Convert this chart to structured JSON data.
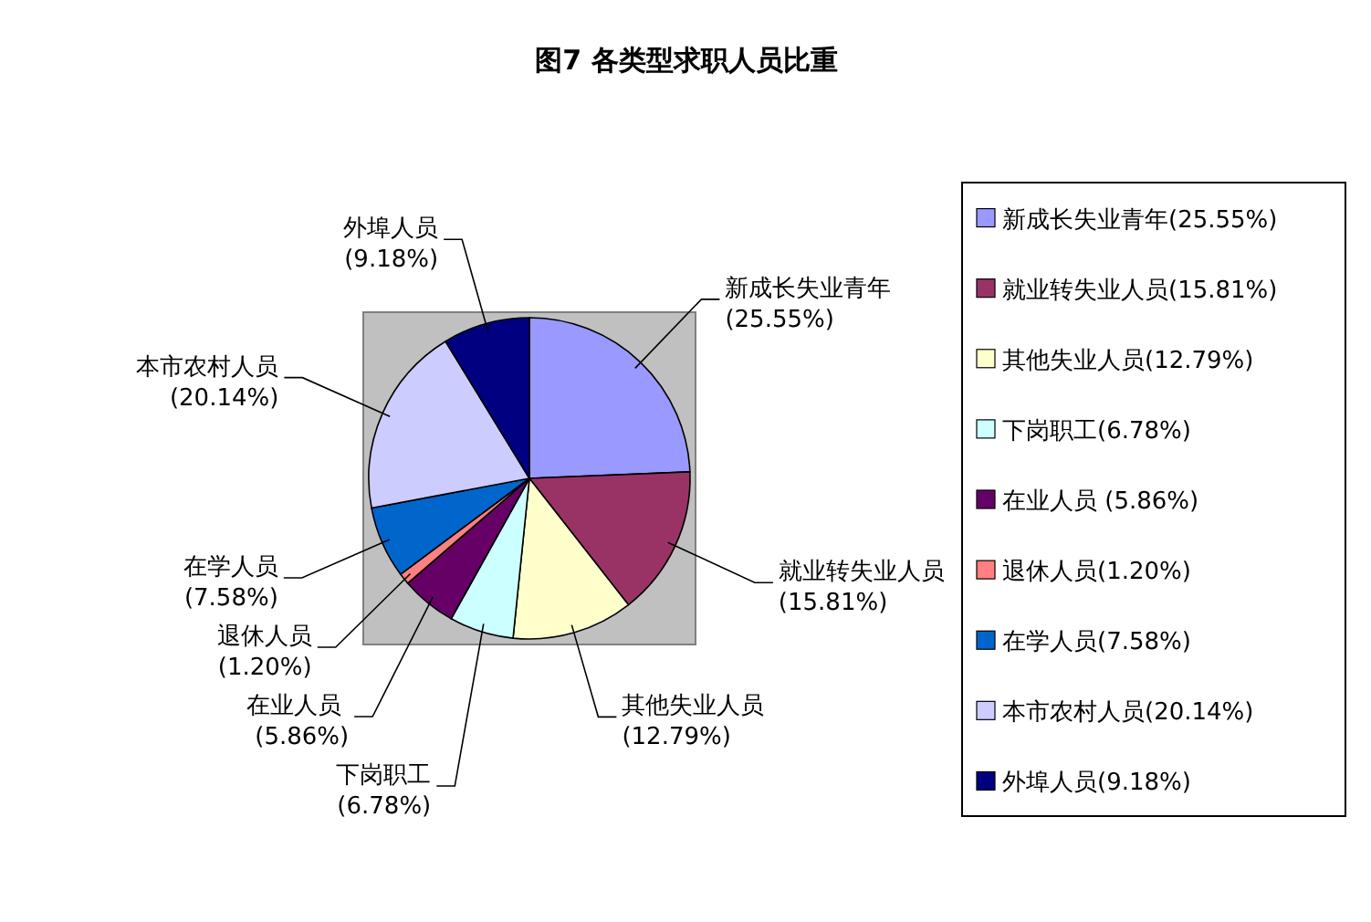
{
  "chart_data": {
    "type": "pie",
    "title": "图7  各类型求职人员比重",
    "categories": [
      "新成长失业青年",
      "就业转失业人员",
      "其他失业人员",
      "下岗职工",
      "在业人员",
      "退休人员",
      "在学人员",
      "本市农村人员",
      "外埠人员"
    ],
    "values": [
      25.55,
      15.81,
      12.79,
      6.78,
      5.86,
      1.2,
      7.58,
      20.14,
      9.18
    ],
    "value_labels": [
      "(25.55%)",
      "(15.81%)",
      "(12.79%)",
      "(6.78%)",
      " (5.86%)",
      "(1.20%)",
      "(7.58%)",
      "(20.14%)",
      "(9.18%)"
    ],
    "colors": [
      "#9999ff",
      "#993366",
      "#ffffcc",
      "#ccffff",
      "#660066",
      "#ff8080",
      "#0066cc",
      "#ccccff",
      "#000080"
    ],
    "legend": "right"
  }
}
